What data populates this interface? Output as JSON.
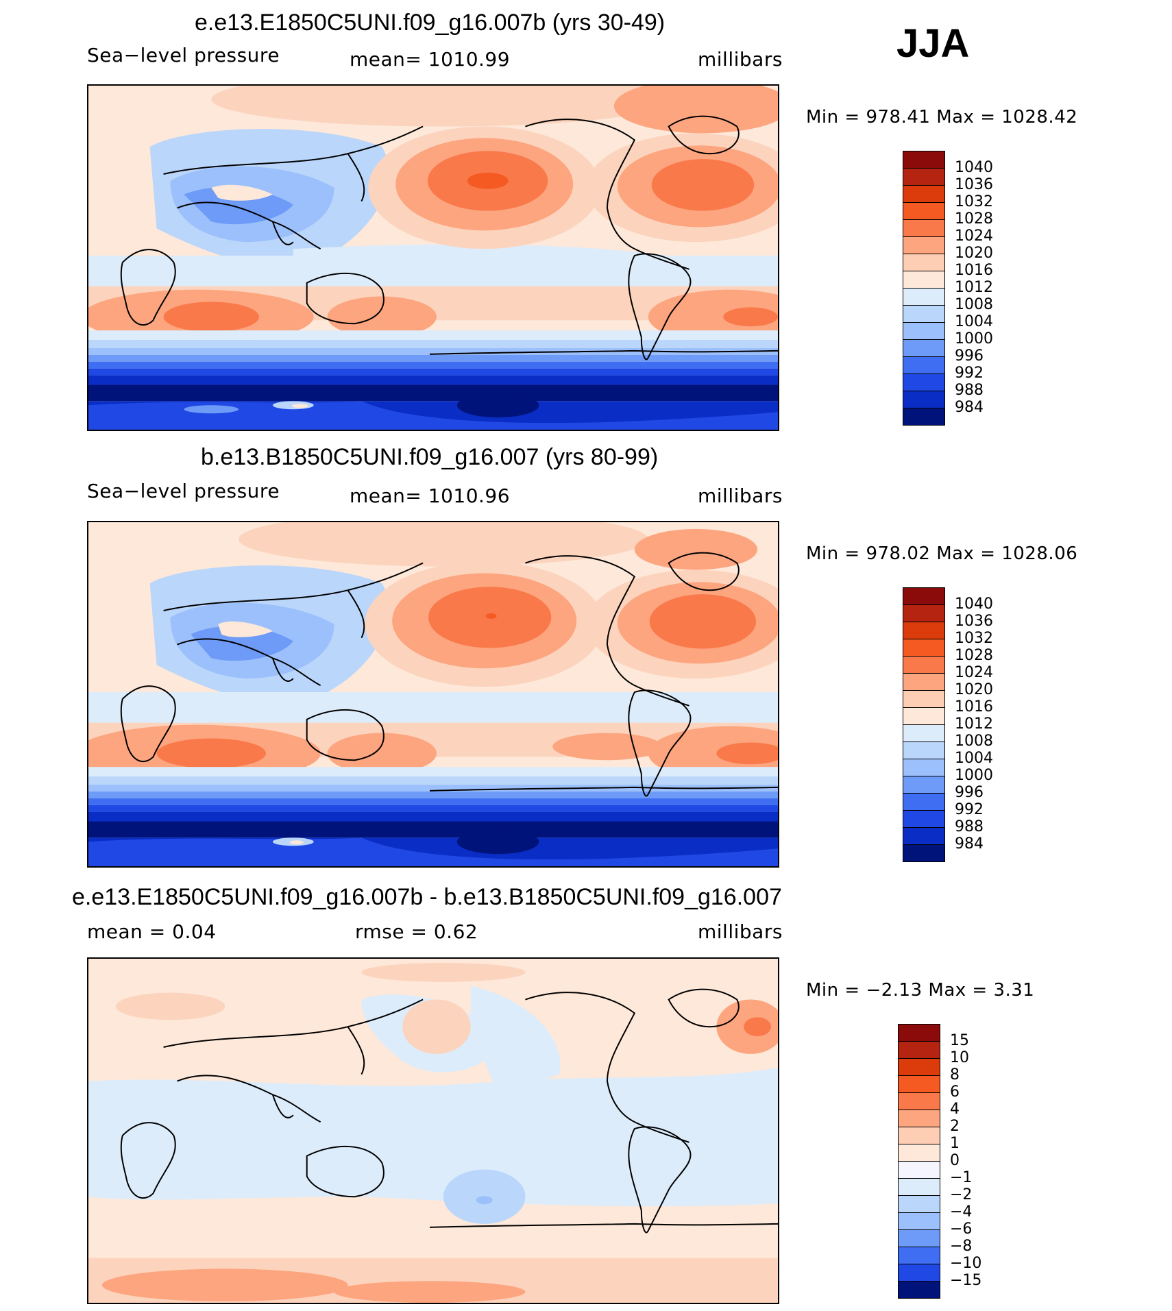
{
  "season": "JJA",
  "panels": [
    {
      "title": "e.e13.E1850C5UNI.f09_g16.007b (yrs 30-49)",
      "left": "Sea−level pressure",
      "center": "mean=  1010.99",
      "right": "millibars",
      "minmax": "Min  =  978.41  Max  =  1028.42",
      "kind": "field",
      "labels": [
        "1040",
        "1036",
        "1032",
        "1028",
        "1024",
        "1020",
        "1016",
        "1012",
        "1008",
        "1004",
        "1000",
        "996",
        "992",
        "988",
        "984"
      ]
    },
    {
      "title": "b.e13.B1850C5UNI.f09_g16.007 (yrs 80-99)",
      "left": "Sea−level pressure",
      "center": "mean=  1010.96",
      "right": "millibars",
      "minmax": "Min  =  978.02  Max  =  1028.06",
      "kind": "field",
      "labels": [
        "1040",
        "1036",
        "1032",
        "1028",
        "1024",
        "1020",
        "1016",
        "1012",
        "1008",
        "1004",
        "1000",
        "996",
        "992",
        "988",
        "984"
      ]
    },
    {
      "title": "e.e13.E1850C5UNI.f09_g16.007b - b.e13.B1850C5UNI.f09_g16.007",
      "left": "mean  =      0.04",
      "center": "rmse  =      0.62",
      "right": "millibars",
      "minmax": "Min  =     −2.13  Max  =      3.31",
      "kind": "diff",
      "labels": [
        "15",
        "10",
        "8",
        "6",
        "4",
        "2",
        "1",
        "0",
        "−1",
        "−2",
        "−4",
        "−6",
        "−8",
        "−10",
        "−15"
      ]
    }
  ],
  "colors": {
    "field_scale": [
      "#8b0a0a",
      "#b52410",
      "#dc3b0c",
      "#f45a22",
      "#f9794a",
      "#fca57f",
      "#fdcdb4",
      "#fde8d9",
      "#dcecfb",
      "#bad6fb",
      "#9cc0fb",
      "#6d9bf7",
      "#3f6ef2",
      "#1f48e4",
      "#0a2dc5",
      "#00137a"
    ],
    "diff_scale": [
      "#8b0a0a",
      "#b52410",
      "#dc3b0c",
      "#f45a22",
      "#f9794a",
      "#fca57f",
      "#fdcdb4",
      "#fde8d9",
      "#f5f5ff",
      "#dcecfb",
      "#bad6fb",
      "#9cc0fb",
      "#6d9bf7",
      "#3f6ef2",
      "#1f48e4",
      "#00137a"
    ]
  }
}
